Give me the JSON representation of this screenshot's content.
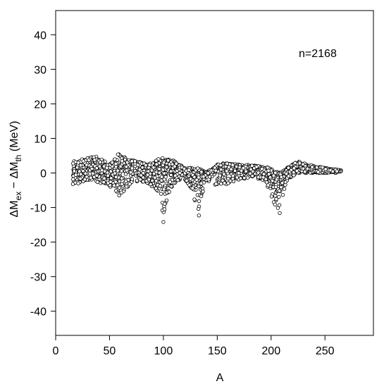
{
  "chart_data": {
    "type": "scatter",
    "title": "",
    "xlabel": "A",
    "ylabel": {
      "prefix": "ΔM",
      "sub1": "ex",
      "middle": " − ΔM",
      "sub2": "th",
      "suffix": " (MeV)"
    },
    "annotation": "n=2168",
    "xlim": [
      0,
      295
    ],
    "ylim": [
      -47,
      47
    ],
    "xticks": [
      0,
      50,
      100,
      150,
      200,
      250
    ],
    "yticks": [
      -40,
      -30,
      -20,
      -10,
      0,
      10,
      20,
      30,
      40
    ],
    "grid": false,
    "legend": "none",
    "marker": {
      "shape": "open-circle",
      "stroke": "#000000",
      "fill": "#ffffff"
    },
    "n_points": 2168,
    "profile": {
      "description": "Residual band vs mass number A, points sampled within [lower, upper] envelope",
      "A": [
        16,
        20,
        25,
        30,
        35,
        40,
        45,
        50,
        55,
        58,
        62,
        66,
        70,
        75,
        80,
        85,
        90,
        95,
        98,
        100,
        102,
        105,
        110,
        115,
        120,
        125,
        128,
        130,
        132,
        134,
        136,
        140,
        145,
        150,
        155,
        160,
        170,
        180,
        190,
        195,
        198,
        200,
        203,
        205,
        207,
        209,
        212,
        215,
        220,
        225,
        230,
        240,
        250,
        255,
        260,
        265
      ],
      "upper": [
        3.5,
        3.5,
        4,
        4.5,
        5,
        4.5,
        3.5,
        2.5,
        4,
        5.5,
        5,
        4.5,
        4,
        3.5,
        3,
        2.5,
        3,
        4,
        4.5,
        4.5,
        4.5,
        4,
        3.5,
        2.5,
        1.5,
        1.5,
        1.5,
        1.5,
        1.5,
        1.2,
        0.8,
        0.5,
        1,
        2.5,
        3,
        2.8,
        2.5,
        2.3,
        2,
        1.8,
        1.5,
        1.2,
        0.8,
        0.5,
        0.3,
        0.3,
        0.8,
        1.5,
        2.5,
        3.5,
        3,
        2,
        1.5,
        1.2,
        1,
        0.8
      ],
      "lower": [
        -3.5,
        -3,
        -2.5,
        -2,
        -2,
        -3,
        -3,
        -4,
        -5,
        -6.5,
        -6,
        -5,
        -3,
        -2.5,
        -2.5,
        -3,
        -4,
        -5.5,
        -10,
        -14,
        -9,
        -6,
        -3,
        -2,
        -2,
        -4,
        -7,
        -9,
        -12,
        -10,
        -6,
        -3,
        -2.5,
        -4,
        -4,
        -3,
        -2,
        -1.5,
        -2,
        -3,
        -5,
        -7,
        -9,
        -10,
        -11.5,
        -9,
        -5,
        -2,
        -1,
        0,
        0,
        0,
        0,
        0,
        0,
        0.5
      ],
      "core_low": [
        -1,
        -1,
        -0.5,
        0,
        0.5,
        0,
        -0.5,
        -1,
        -1,
        -2,
        -2,
        -1,
        0,
        0,
        -0.5,
        -1,
        -1,
        -2,
        -3,
        -3,
        -2,
        -1,
        0,
        0,
        0,
        -1,
        -2,
        -3,
        -4,
        -3,
        -2,
        -0.5,
        0,
        0,
        0.5,
        0.5,
        0.5,
        0.5,
        0,
        -0.5,
        -1.5,
        -2.5,
        -4,
        -5,
        -6,
        -4,
        -2,
        0,
        0.5,
        1,
        1,
        0.5,
        0.5,
        0.5,
        0.5,
        0.5
      ],
      "outliers": [
        {
          "x": 100,
          "y": -14.2
        },
        {
          "x": 99,
          "y": -10.8
        },
        {
          "x": 101,
          "y": -10.5
        },
        {
          "x": 133,
          "y": -12.3
        },
        {
          "x": 208,
          "y": -11.6
        },
        {
          "x": 59,
          "y": -6.5
        },
        {
          "x": 16,
          "y": -3.2
        },
        {
          "x": 21,
          "y": -3.0
        }
      ]
    }
  }
}
